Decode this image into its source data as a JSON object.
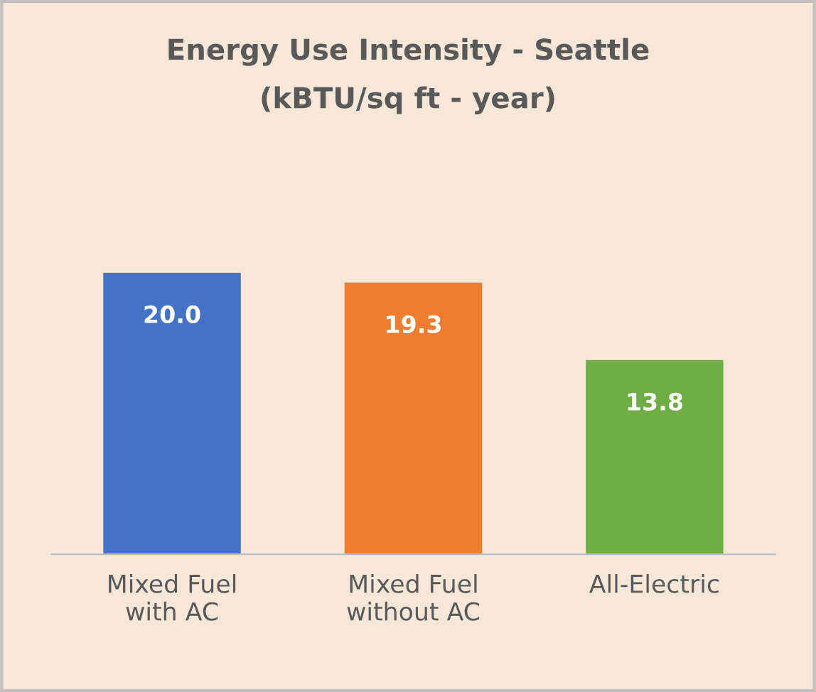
{
  "chart_data": {
    "type": "bar",
    "title": "Energy Use Intensity - Seattle",
    "subtitle": "(kBTU/sq ft - year)",
    "categories": [
      "Mixed Fuel\nwith AC",
      "Mixed Fuel\nwithout AC",
      "All-Electric"
    ],
    "values": [
      20.0,
      19.3,
      13.8
    ],
    "colors": [
      "#4472c4",
      "#ed7d31",
      "#70ad47"
    ],
    "value_labels": [
      "20.0",
      "19.3",
      "13.8"
    ],
    "grid": false,
    "legend": false
  }
}
